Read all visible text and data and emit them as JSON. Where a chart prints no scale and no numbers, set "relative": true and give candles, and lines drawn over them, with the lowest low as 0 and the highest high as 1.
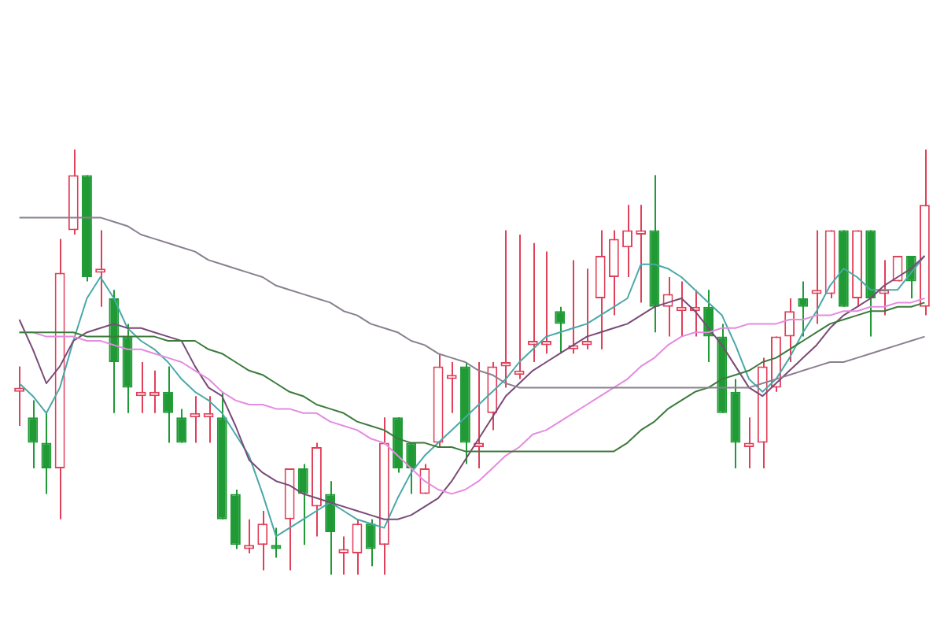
{
  "chart_data": {
    "type": "candlestick",
    "relative": true,
    "categories": [
      null,
      null,
      null,
      null,
      null,
      null,
      null,
      null,
      null,
      null,
      null,
      null,
      null,
      null,
      null,
      null,
      null,
      null,
      null,
      null,
      null,
      null,
      null,
      null,
      null,
      null,
      null,
      null,
      null,
      null,
      null,
      null,
      null,
      null,
      null,
      null,
      null,
      null,
      null,
      null,
      null,
      null,
      null,
      null,
      null,
      null,
      null,
      null,
      null,
      null,
      null,
      null,
      null,
      null,
      null,
      null,
      null,
      null,
      null,
      null,
      null,
      null,
      null,
      null,
      null,
      null,
      null,
      null
    ],
    "ohlc": [
      [
        0.43,
        0.49,
        0.35,
        0.44
      ],
      [
        0.37,
        0.41,
        0.25,
        0.31
      ],
      [
        0.31,
        0.38,
        0.19,
        0.25
      ],
      [
        0.25,
        0.79,
        0.13,
        0.71
      ],
      [
        0.81,
        1.0,
        0.8,
        0.94
      ],
      [
        0.94,
        0.94,
        0.69,
        0.7
      ],
      [
        0.71,
        0.81,
        0.63,
        0.72
      ],
      [
        0.65,
        0.67,
        0.38,
        0.5
      ],
      [
        0.56,
        0.59,
        0.38,
        0.44
      ],
      [
        0.42,
        0.5,
        0.38,
        0.43
      ],
      [
        0.42,
        0.48,
        0.38,
        0.43
      ],
      [
        0.43,
        0.49,
        0.31,
        0.38
      ],
      [
        0.37,
        0.39,
        0.31,
        0.31
      ],
      [
        0.37,
        0.42,
        0.31,
        0.38
      ],
      [
        0.37,
        0.42,
        0.31,
        0.38
      ],
      [
        0.37,
        0.43,
        0.13,
        0.13
      ],
      [
        0.19,
        0.2,
        0.06,
        0.07
      ],
      [
        0.06,
        0.13,
        0.05,
        0.07
      ],
      [
        0.07,
        0.15,
        0.01,
        0.12
      ],
      [
        0.07,
        0.11,
        0.04,
        0.06
      ],
      [
        0.13,
        0.25,
        0.01,
        0.25
      ],
      [
        0.25,
        0.26,
        0.07,
        0.19
      ],
      [
        0.16,
        0.31,
        0.09,
        0.3
      ],
      [
        0.19,
        0.22,
        0.0,
        0.1
      ],
      [
        0.05,
        0.09,
        0.0,
        0.06
      ],
      [
        0.05,
        0.13,
        0.0,
        0.12
      ],
      [
        0.12,
        0.13,
        0.02,
        0.06
      ],
      [
        0.07,
        0.37,
        0.0,
        0.31
      ],
      [
        0.37,
        0.37,
        0.24,
        0.25
      ],
      [
        0.31,
        0.31,
        0.19,
        0.25
      ],
      [
        0.19,
        0.26,
        0.19,
        0.25
      ],
      [
        0.31,
        0.52,
        0.3,
        0.49
      ],
      [
        0.46,
        0.5,
        0.38,
        0.47
      ],
      [
        0.49,
        0.5,
        0.26,
        0.31
      ],
      [
        0.3,
        0.5,
        0.25,
        0.31
      ],
      [
        0.38,
        0.5,
        0.34,
        0.49
      ],
      [
        0.49,
        0.81,
        0.44,
        0.5
      ],
      [
        0.47,
        0.8,
        0.46,
        0.48
      ],
      [
        0.54,
        0.78,
        0.5,
        0.55
      ],
      [
        0.54,
        0.76,
        0.52,
        0.55
      ],
      [
        0.62,
        0.63,
        0.52,
        0.59
      ],
      [
        0.53,
        0.74,
        0.52,
        0.54
      ],
      [
        0.54,
        0.72,
        0.53,
        0.55
      ],
      [
        0.65,
        0.81,
        0.53,
        0.75
      ],
      [
        0.7,
        0.81,
        0.61,
        0.79
      ],
      [
        0.77,
        0.87,
        0.7,
        0.81
      ],
      [
        0.8,
        0.87,
        0.64,
        0.81
      ],
      [
        0.81,
        0.94,
        0.57,
        0.63
      ],
      [
        0.63,
        0.7,
        0.56,
        0.66
      ],
      [
        0.62,
        0.69,
        0.56,
        0.63
      ],
      [
        0.62,
        0.67,
        0.56,
        0.63
      ],
      [
        0.63,
        0.67,
        0.5,
        0.56
      ],
      [
        0.56,
        0.59,
        0.38,
        0.38
      ],
      [
        0.43,
        0.46,
        0.25,
        0.31
      ],
      [
        0.3,
        0.37,
        0.25,
        0.31
      ],
      [
        0.31,
        0.51,
        0.25,
        0.49
      ],
      [
        0.44,
        0.56,
        0.43,
        0.56
      ],
      [
        0.56,
        0.65,
        0.5,
        0.62
      ],
      [
        0.65,
        0.69,
        0.56,
        0.63
      ],
      [
        0.66,
        0.81,
        0.59,
        0.67
      ],
      [
        0.66,
        0.81,
        0.65,
        0.81
      ],
      [
        0.81,
        0.81,
        0.63,
        0.63
      ],
      [
        0.65,
        0.81,
        0.63,
        0.81
      ],
      [
        0.81,
        0.81,
        0.56,
        0.65
      ],
      [
        0.66,
        0.74,
        0.61,
        0.67
      ],
      [
        0.69,
        0.75,
        0.69,
        0.75
      ],
      [
        0.75,
        0.75,
        0.65,
        0.69
      ],
      [
        0.63,
        1.0,
        0.61,
        0.87
      ]
    ],
    "colors": [
      "#e0405a",
      "#1f9a35",
      "#1f9a35",
      "#e0405a",
      "#e0405a",
      "#1f9a35",
      "#e0405a",
      "#1f9a35",
      "#1f9a35",
      "#e0405a",
      "#e0405a",
      "#1f9a35",
      "#1f9a35",
      "#e0405a",
      "#e0405a",
      "#1f9a35",
      "#1f9a35",
      "#e0405a",
      "#e0405a",
      "#1f9a35",
      "#e0405a",
      "#1f9a35",
      "#e0405a",
      "#1f9a35",
      "#e0405a",
      "#e0405a",
      "#1f9a35",
      "#e0405a",
      "#1f9a35",
      "#1f9a35",
      "#e0405a",
      "#e0405a",
      "#e0405a",
      "#1f9a35",
      "#e0405a",
      "#e0405a",
      "#e0405a",
      "#e0405a",
      "#e0405a",
      "#e0405a",
      "#1f9a35",
      "#e0405a",
      "#e0405a",
      "#e0405a",
      "#e0405a",
      "#e0405a",
      "#e0405a",
      "#1f9a35",
      "#e0405a",
      "#e0405a",
      "#e0405a",
      "#1f9a35",
      "#1f9a35",
      "#1f9a35",
      "#e0405a",
      "#e0405a",
      "#e0405a",
      "#e0405a",
      "#1f9a35",
      "#e0405a",
      "#e0405a",
      "#1f9a35",
      "#e0405a",
      "#1f9a35",
      "#e0405a",
      "#e0405a",
      "#1f9a35",
      "#e0405a"
    ],
    "series": [
      {
        "type": "line",
        "color": "#8a8090",
        "values": [
          0.84,
          0.84,
          0.84,
          0.84,
          0.84,
          0.84,
          0.84,
          0.83,
          0.82,
          0.8,
          0.79,
          0.78,
          0.77,
          0.76,
          0.74,
          0.73,
          0.72,
          0.71,
          0.7,
          0.68,
          0.67,
          0.66,
          0.65,
          0.64,
          0.62,
          0.61,
          0.59,
          0.58,
          0.57,
          0.55,
          0.54,
          0.52,
          0.51,
          0.5,
          0.48,
          0.47,
          0.45,
          0.44,
          0.44,
          0.44,
          0.44,
          0.44,
          0.44,
          0.44,
          0.44,
          0.44,
          0.44,
          0.44,
          0.44,
          0.44,
          0.44,
          0.44,
          0.44,
          0.44,
          0.44,
          0.45,
          0.46,
          0.47,
          0.48,
          0.49,
          0.5,
          0.5,
          0.51,
          0.52,
          0.53,
          0.54,
          0.55,
          0.56
        ]
      },
      {
        "type": "line",
        "color": "#3c7a3c",
        "values": [
          0.57,
          0.57,
          0.57,
          0.57,
          0.57,
          0.56,
          0.56,
          0.56,
          0.56,
          0.56,
          0.56,
          0.55,
          0.55,
          0.55,
          0.53,
          0.52,
          0.5,
          0.48,
          0.47,
          0.45,
          0.43,
          0.42,
          0.4,
          0.39,
          0.38,
          0.36,
          0.35,
          0.34,
          0.32,
          0.31,
          0.31,
          0.3,
          0.3,
          0.29,
          0.29,
          0.29,
          0.29,
          0.29,
          0.29,
          0.29,
          0.29,
          0.29,
          0.29,
          0.29,
          0.29,
          0.31,
          0.34,
          0.36,
          0.39,
          0.41,
          0.43,
          0.44,
          0.46,
          0.47,
          0.48,
          0.5,
          0.51,
          0.53,
          0.55,
          0.57,
          0.59,
          0.6,
          0.61,
          0.62,
          0.62,
          0.63,
          0.63,
          0.64
        ]
      },
      {
        "type": "line",
        "color": "#e58be0",
        "values": [
          0.57,
          0.57,
          0.56,
          0.56,
          0.56,
          0.55,
          0.55,
          0.54,
          0.53,
          0.53,
          0.52,
          0.51,
          0.5,
          0.48,
          0.46,
          0.43,
          0.41,
          0.4,
          0.4,
          0.39,
          0.39,
          0.38,
          0.38,
          0.36,
          0.35,
          0.34,
          0.32,
          0.31,
          0.28,
          0.25,
          0.22,
          0.2,
          0.19,
          0.2,
          0.22,
          0.25,
          0.28,
          0.3,
          0.33,
          0.34,
          0.36,
          0.38,
          0.4,
          0.42,
          0.44,
          0.46,
          0.49,
          0.51,
          0.54,
          0.56,
          0.57,
          0.57,
          0.58,
          0.58,
          0.59,
          0.59,
          0.59,
          0.6,
          0.6,
          0.61,
          0.61,
          0.62,
          0.62,
          0.63,
          0.63,
          0.64,
          0.64,
          0.65
        ]
      },
      {
        "type": "line",
        "color": "#7a4a78",
        "values": [
          0.6,
          0.53,
          0.45,
          0.49,
          0.55,
          0.57,
          0.58,
          0.59,
          0.58,
          0.58,
          0.57,
          0.56,
          0.55,
          0.49,
          0.44,
          0.42,
          0.35,
          0.27,
          0.24,
          0.22,
          0.21,
          0.19,
          0.18,
          0.17,
          0.16,
          0.15,
          0.14,
          0.13,
          0.13,
          0.14,
          0.16,
          0.18,
          0.22,
          0.27,
          0.32,
          0.37,
          0.42,
          0.45,
          0.48,
          0.5,
          0.52,
          0.54,
          0.56,
          0.57,
          0.58,
          0.59,
          0.61,
          0.63,
          0.64,
          0.65,
          0.62,
          0.58,
          0.54,
          0.49,
          0.44,
          0.42,
          0.45,
          0.48,
          0.51,
          0.54,
          0.58,
          0.61,
          0.63,
          0.65,
          0.68,
          0.7,
          0.72,
          0.75
        ]
      },
      {
        "type": "line",
        "color": "#4aa8a8",
        "values": [
          0.45,
          0.42,
          0.38,
          0.44,
          0.55,
          0.65,
          0.7,
          0.65,
          0.58,
          0.55,
          0.53,
          0.5,
          0.46,
          0.43,
          0.41,
          0.38,
          0.33,
          0.28,
          0.19,
          0.09,
          0.11,
          0.13,
          0.15,
          0.17,
          0.15,
          0.13,
          0.12,
          0.11,
          0.18,
          0.24,
          0.28,
          0.31,
          0.34,
          0.37,
          0.4,
          0.43,
          0.46,
          0.5,
          0.53,
          0.56,
          0.57,
          0.58,
          0.59,
          0.61,
          0.63,
          0.65,
          0.73,
          0.73,
          0.72,
          0.7,
          0.67,
          0.64,
          0.61,
          0.54,
          0.46,
          0.43,
          0.46,
          0.51,
          0.57,
          0.62,
          0.68,
          0.72,
          0.7,
          0.67,
          0.67,
          0.67,
          0.71,
          0.75
        ]
      }
    ]
  }
}
